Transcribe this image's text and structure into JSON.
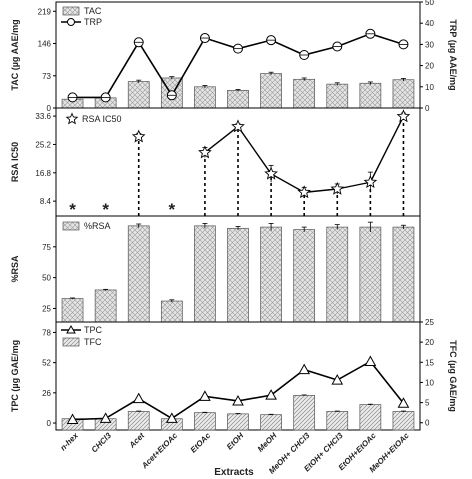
{
  "chart_data": [
    {
      "type": "bar",
      "panel": "TAC/TRP",
      "categories": [
        "n-hex",
        "CHCl3",
        "Acet",
        "Acet+EtOAc",
        "EtOAc",
        "EtOH",
        "MeOH",
        "MeOH+ CHCl3",
        "EtOH+ CHCl3",
        "EtOH+EtOAc",
        "MeOH+EtOAc"
      ],
      "ylabel": "TAC (µg AAE/mg",
      "y2label": "TRP (µg AAE/mg",
      "ylim": [
        0,
        240
      ],
      "y2lim": [
        0,
        50
      ],
      "yticks": [
        "0",
        "73",
        "146",
        "219"
      ],
      "y2ticks": [
        "0",
        "10",
        "20",
        "30",
        "40",
        "50"
      ],
      "series": [
        {
          "name": "TAC",
          "kind": "bar",
          "axis": "left",
          "values": [
            20,
            23,
            60,
            68,
            48,
            40,
            78,
            65,
            54,
            56,
            64
          ],
          "errors": [
            2,
            2,
            3,
            3,
            3,
            2,
            3,
            3,
            3,
            3,
            3
          ]
        },
        {
          "name": "TRP",
          "kind": "line",
          "axis": "right",
          "values": [
            5,
            5,
            31,
            6,
            33,
            28,
            32,
            25,
            29,
            35,
            30
          ],
          "errors": [
            1,
            1,
            2,
            2,
            2,
            2,
            2,
            2,
            2,
            2,
            2
          ]
        }
      ]
    },
    {
      "type": "line",
      "panel": "RSA IC50",
      "categories": [
        "n-hex",
        "CHCl3",
        "Acet",
        "Acet+EtOAc",
        "EtOAc",
        "EtOH",
        "MeOH",
        "MeOH+ CHCl3",
        "EtOH+ CHCl3",
        "EtOH+EtOAc",
        "MeOH+EtOAc"
      ],
      "ylabel": "RSA IC50",
      "ylim": [
        4,
        36
      ],
      "yticks": [
        "8.4",
        "16.8",
        "25.2",
        "33.6"
      ],
      "series": [
        {
          "name": "RSA IC50",
          "values": [
            null,
            null,
            27.5,
            null,
            22.8,
            30.5,
            16.5,
            11,
            12,
            14,
            33.5
          ],
          "errors": [
            1,
            0,
            1,
            0,
            1.5,
            0.8,
            2.5,
            1.5,
            1.5,
            3,
            1
          ]
        }
      ],
      "annotations": [
        {
          "category": "n-hex",
          "text": "*"
        },
        {
          "category": "CHCl3",
          "text": "*"
        },
        {
          "category": "Acet+EtOAc",
          "text": "*"
        }
      ]
    },
    {
      "type": "bar",
      "panel": "%RSA",
      "categories": [
        "n-hex",
        "CHCl3",
        "Acet",
        "Acet+EtOAc",
        "EtOAc",
        "EtOH",
        "MeOH",
        "MeOH+ CHCl3",
        "EtOH+ CHCl3",
        "EtOH+EtOAc",
        "MeOH+EtOAc"
      ],
      "ylabel": "%RSA",
      "ylim": [
        14,
        100
      ],
      "yticks": [
        "25",
        "50",
        "75"
      ],
      "series": [
        {
          "name": "%RSA",
          "values": [
            33,
            40,
            92,
            31,
            92,
            90,
            91,
            89,
            91,
            91,
            91
          ],
          "errors": [
            0.5,
            0.5,
            1.5,
            1,
            2,
            1.5,
            3,
            2,
            2,
            4,
            1.5
          ]
        }
      ]
    },
    {
      "type": "bar",
      "panel": "TPC/TFC",
      "categories": [
        "n-hex",
        "CHCl3",
        "Acet",
        "Acet+EtOAc",
        "EtOAc",
        "EtOH",
        "MeOH",
        "MeOH+ CHCl3",
        "EtOH+ CHCl3",
        "EtOH+EtOAc",
        "MeOH+EtOAc"
      ],
      "xlabel": "Extracts",
      "ylabel": "TPC (µg GAE/mg",
      "y2label": "TFC (µg GAE/mg",
      "ylim": [
        -6,
        87
      ],
      "y2lim": [
        -1.8,
        25
      ],
      "yticks": [
        "0",
        "26",
        "52",
        "78"
      ],
      "y2ticks": [
        "0",
        "5",
        "10",
        "15",
        "20",
        "25"
      ],
      "series": [
        {
          "name": "TPC",
          "kind": "line",
          "axis": "left",
          "values": [
            3,
            4,
            21,
            4,
            23,
            19,
            24,
            46,
            37,
            53,
            17
          ],
          "errors": [
            1,
            1,
            1,
            1,
            1,
            1,
            1,
            1,
            1,
            1,
            1
          ]
        },
        {
          "name": "TFC",
          "kind": "bar",
          "axis": "right",
          "values": [
            1,
            1,
            2.8,
            1,
            2.5,
            2.2,
            2,
            6.8,
            2.8,
            4.5,
            2.8
          ],
          "errors": [
            0.1,
            0.1,
            0.1,
            0.1,
            0.1,
            0.1,
            0.1,
            0.1,
            0.1,
            0.1,
            0.1
          ]
        }
      ]
    }
  ]
}
